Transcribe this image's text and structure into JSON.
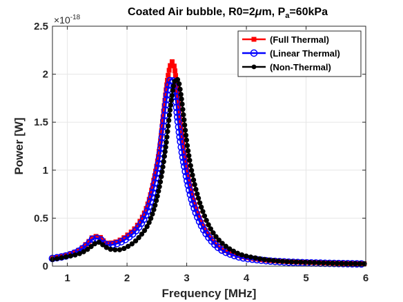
{
  "chart_data": {
    "type": "line",
    "title_prefix": "Coated Air bubble, R0=2",
    "title_mu": "μ",
    "title_mid": "m, P",
    "title_sub": "a",
    "title_suffix": "=60kPa",
    "xlabel": "Frequency [MHz]",
    "ylabel": "Power [W]",
    "y_exponent_base": "×10",
    "y_exponent": "-18",
    "xlim": [
      0.75,
      6
    ],
    "ylim": [
      0,
      2.5
    ],
    "xticks": [
      1,
      2,
      3,
      4,
      5,
      6
    ],
    "xtick_labels": [
      "1",
      "2",
      "3",
      "4",
      "5",
      "6"
    ],
    "yticks": [
      0,
      0.5,
      1,
      1.5,
      2,
      2.5
    ],
    "ytick_labels": [
      "0",
      "0.5",
      "1",
      "1.5",
      "2",
      "2.5"
    ],
    "grid": true,
    "legend_position": "top-right",
    "series": [
      {
        "name": "(Full Thermal)",
        "color": "#ff0000",
        "marker": "square",
        "x": [
          0.75,
          1.0,
          1.2,
          1.35,
          1.45,
          1.55,
          1.65,
          1.8,
          2.0,
          2.2,
          2.35,
          2.45,
          2.55,
          2.62,
          2.68,
          2.72,
          2.75,
          2.78,
          2.82,
          2.86,
          2.92,
          3.0,
          3.1,
          3.25,
          3.5,
          3.8,
          4.2,
          4.6,
          5.0,
          5.5,
          6.0
        ],
        "y": [
          0.08,
          0.12,
          0.17,
          0.25,
          0.31,
          0.3,
          0.24,
          0.25,
          0.32,
          0.45,
          0.65,
          0.9,
          1.25,
          1.65,
          1.95,
          2.08,
          2.13,
          2.11,
          1.95,
          1.68,
          1.35,
          1.02,
          0.72,
          0.45,
          0.22,
          0.12,
          0.07,
          0.05,
          0.04,
          0.03,
          0.025
        ]
      },
      {
        "name": "(Linear Thermal)",
        "color": "#0000ff",
        "marker": "circle",
        "x": [
          0.75,
          1.0,
          1.2,
          1.35,
          1.45,
          1.55,
          1.65,
          1.8,
          2.0,
          2.2,
          2.35,
          2.45,
          2.55,
          2.62,
          2.68,
          2.72,
          2.75,
          2.78,
          2.82,
          2.86,
          2.92,
          3.0,
          3.1,
          3.25,
          3.5,
          3.8,
          4.2,
          4.6,
          5.0,
          5.5,
          6.0
        ],
        "y": [
          0.08,
          0.11,
          0.16,
          0.23,
          0.29,
          0.28,
          0.22,
          0.23,
          0.29,
          0.41,
          0.59,
          0.82,
          1.15,
          1.52,
          1.82,
          1.93,
          1.95,
          1.9,
          1.72,
          1.48,
          1.2,
          0.92,
          0.66,
          0.42,
          0.21,
          0.11,
          0.065,
          0.045,
          0.035,
          0.028,
          0.022
        ]
      },
      {
        "name": "(Non-Thermal)",
        "color": "#000000",
        "marker": "dot",
        "x": [
          0.75,
          1.0,
          1.2,
          1.35,
          1.45,
          1.52,
          1.6,
          1.7,
          1.85,
          2.0,
          2.2,
          2.4,
          2.55,
          2.65,
          2.72,
          2.78,
          2.82,
          2.86,
          2.9,
          2.95,
          3.0,
          3.08,
          3.2,
          3.35,
          3.5,
          3.8,
          4.2,
          4.6,
          5.0,
          5.5,
          6.0
        ],
        "y": [
          0.07,
          0.1,
          0.13,
          0.18,
          0.23,
          0.25,
          0.22,
          0.18,
          0.17,
          0.2,
          0.3,
          0.5,
          0.85,
          1.25,
          1.62,
          1.88,
          1.95,
          1.93,
          1.8,
          1.55,
          1.3,
          1.0,
          0.7,
          0.45,
          0.3,
          0.15,
          0.08,
          0.05,
          0.04,
          0.03,
          0.025
        ]
      }
    ]
  }
}
